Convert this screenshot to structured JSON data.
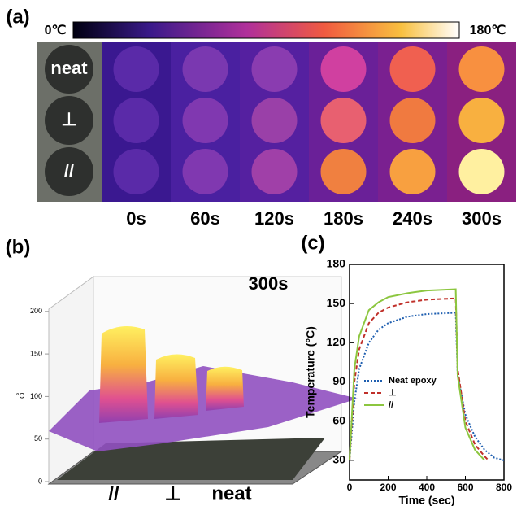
{
  "panel_a": {
    "label": "(a)",
    "colorbar": {
      "min_label": "0℃",
      "max_label": "180℃"
    },
    "rows": [
      "neat",
      "⊥",
      "//"
    ],
    "times": [
      "0s",
      "60s",
      "120s",
      "180s",
      "240s",
      "300s"
    ]
  },
  "panel_b": {
    "label": "(b)",
    "title": "300s",
    "unit": "°C",
    "zticks": [
      0,
      50,
      100,
      150,
      200
    ],
    "samples": [
      "//",
      "⊥",
      "neat"
    ]
  },
  "panel_c": {
    "label": "(c)"
  },
  "chart_data": {
    "type": "line",
    "xlabel": "Time (sec)",
    "ylabel": "Temperature (°C)",
    "xlim": [
      0,
      800
    ],
    "xticks": [
      0,
      200,
      400,
      600,
      800
    ],
    "ylim": [
      15,
      180
    ],
    "yticks": [
      30,
      60,
      90,
      120,
      150,
      180
    ],
    "series": [
      {
        "name": "Neat epoxy",
        "color": "#1f5fb0",
        "dash": "2,2",
        "x": [
          0,
          25,
          50,
          100,
          150,
          200,
          300,
          400,
          550,
          560,
          600,
          650,
          700,
          750,
          800
        ],
        "values": [
          30,
          75,
          100,
          120,
          130,
          135,
          140,
          142,
          143,
          95,
          65,
          48,
          38,
          32,
          30
        ]
      },
      {
        "name": "⊥",
        "color": "#c0302a",
        "dash": "5,3",
        "x": [
          0,
          25,
          50,
          100,
          150,
          200,
          300,
          400,
          550,
          560,
          600,
          650,
          700,
          720
        ],
        "values": [
          30,
          90,
          115,
          135,
          143,
          147,
          151,
          153,
          154,
          100,
          60,
          42,
          33,
          30
        ]
      },
      {
        "name": "//",
        "color": "#8cc63f",
        "dash": "none",
        "x": [
          0,
          25,
          50,
          100,
          150,
          200,
          300,
          400,
          550,
          560,
          600,
          650,
          700
        ],
        "values": [
          30,
          100,
          125,
          145,
          151,
          155,
          158,
          160,
          161,
          95,
          55,
          38,
          30
        ]
      }
    ]
  }
}
